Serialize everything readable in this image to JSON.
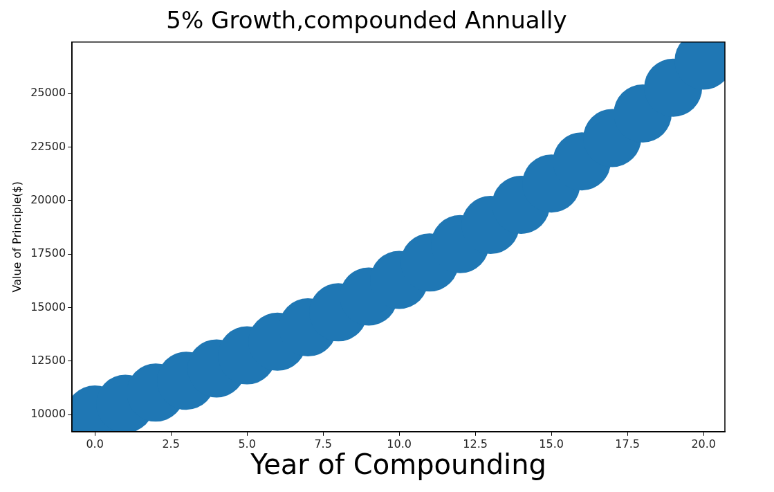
{
  "chart_data": {
    "type": "scatter",
    "title": "5% Growth,compounded Annually",
    "xlabel": "Year of Compounding",
    "ylabel": "Value of Principle($)",
    "x": [
      0,
      1,
      2,
      3,
      4,
      5,
      6,
      7,
      8,
      9,
      10,
      11,
      12,
      13,
      14,
      15,
      16,
      17,
      18,
      19,
      20
    ],
    "series": [
      {
        "color": "#1f77b4",
        "values": [
          10000,
          10500,
          11025,
          11576,
          12155,
          12763,
          13401,
          14071,
          14775,
          15513,
          16289,
          17103,
          17959,
          18856,
          19799,
          20789,
          21829,
          22920,
          24066,
          25270,
          26533
        ]
      }
    ],
    "xlim": [
      -0.75,
      20.7
    ],
    "ylim": [
      9200,
      27400
    ],
    "xticks": [
      {
        "value": 0,
        "label": "0.0"
      },
      {
        "value": 2.5,
        "label": "2.5"
      },
      {
        "value": 5,
        "label": "5.0"
      },
      {
        "value": 7.5,
        "label": "7.5"
      },
      {
        "value": 10,
        "label": "10.0"
      },
      {
        "value": 12.5,
        "label": "12.5"
      },
      {
        "value": 15,
        "label": "15.0"
      },
      {
        "value": 17.5,
        "label": "17.5"
      },
      {
        "value": 20,
        "label": "20.0"
      }
    ],
    "yticks": [
      10000,
      12500,
      15000,
      17500,
      20000,
      22500,
      25000
    ],
    "marker": "circle",
    "grid": false,
    "legend": false
  }
}
